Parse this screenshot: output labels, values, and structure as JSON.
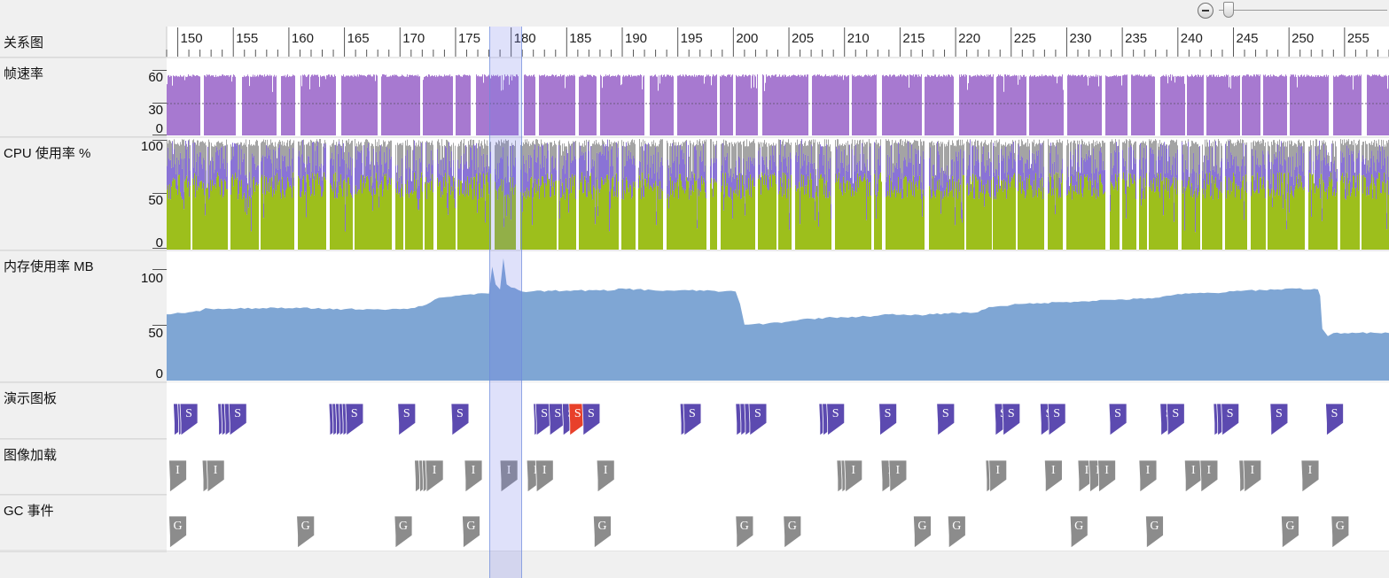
{
  "zoom": {
    "zoom_out_icon": "zoom-out-circle-icon",
    "slider_level": 0.05
  },
  "ruler": {
    "start": 149,
    "end": 259,
    "labels": [
      "150",
      "155",
      "160",
      "165",
      "170",
      "175",
      "180",
      "185",
      "190",
      "195",
      "200",
      "205",
      "210",
      "215",
      "220",
      "225",
      "230",
      "235",
      "240",
      "245",
      "250",
      "255"
    ]
  },
  "selection": {
    "start": 178,
    "end": 181
  },
  "lanes": {
    "timeline": {
      "label": "关系图"
    },
    "framerate": {
      "label": "帧速率",
      "ticks": [
        "60",
        "30",
        "0"
      ],
      "color": "#a779d0"
    },
    "cpu": {
      "label": "CPU 使用率 %",
      "ticks": [
        "100",
        "50",
        "0"
      ],
      "colors": {
        "green": "#9dbf1c",
        "purple": "#8a73d6",
        "gray": "#a4a4a4"
      }
    },
    "memory": {
      "label": "内存使用率 MB",
      "ticks": [
        "100",
        "50",
        "0"
      ],
      "color": "#7fa6d4"
    },
    "storyboard": {
      "label": "演示图板",
      "marker_letter": "S",
      "color": "#5c4ab0",
      "highlight_color": "#e8402a"
    },
    "image_load": {
      "label": "图像加载",
      "marker_letter": "I",
      "color": "#8c8c8c"
    },
    "gc": {
      "label": "GC 事件",
      "marker_letter": "G",
      "color": "#8c8c8c"
    }
  },
  "memory_series": {
    "x": [
      149,
      151,
      152,
      152.5,
      154,
      157,
      160,
      161,
      165,
      168,
      170,
      171,
      172,
      173.5,
      175,
      176,
      178,
      178.3,
      178.6,
      179,
      179.3,
      179.6,
      180,
      181,
      185,
      189,
      190,
      193,
      198,
      199,
      200.2,
      200.6,
      201,
      203,
      205,
      206,
      209,
      212,
      214,
      216,
      218,
      219,
      222,
      223,
      224,
      226,
      228,
      230,
      234,
      237,
      238,
      239,
      241,
      244,
      246,
      249,
      250,
      252.6,
      252.8,
      253,
      253.5,
      254,
      256,
      259
    ],
    "y": [
      64,
      66,
      67,
      70,
      69,
      70,
      70,
      70,
      69,
      69,
      69,
      70,
      72,
      80,
      82,
      83,
      84,
      110,
      93,
      88,
      118,
      93,
      90,
      86,
      87,
      87,
      89,
      87,
      87,
      86,
      86,
      74,
      54,
      55,
      57,
      59,
      61,
      62,
      64,
      63,
      64,
      65,
      66,
      71,
      72,
      74,
      75,
      76,
      78,
      79,
      80,
      82,
      84,
      85,
      87,
      88,
      89,
      88,
      82,
      50,
      43,
      46,
      46,
      46
    ]
  },
  "storyboard_events": [
    {
      "t": 149.6
    },
    {
      "t": 150.0
    },
    {
      "t": 150.2,
      "l": "S"
    },
    {
      "t": 153.6
    },
    {
      "t": 153.9
    },
    {
      "t": 154.2,
      "l": "S"
    },
    {
      "t": 154.6,
      "l": "S"
    },
    {
      "t": 163.6
    },
    {
      "t": 163.9
    },
    {
      "t": 164.2
    },
    {
      "t": 164.5
    },
    {
      "t": 164.8
    },
    {
      "t": 165.1,
      "l": "S"
    },
    {
      "t": 169.8,
      "l": "S"
    },
    {
      "t": 174.6,
      "l": "S"
    },
    {
      "t": 182.0
    },
    {
      "t": 182.2,
      "l": "S"
    },
    {
      "t": 183.4,
      "l": "S"
    },
    {
      "t": 184.6,
      "l": "S"
    },
    {
      "t": 185.2,
      "l": "S",
      "hl": true
    },
    {
      "t": 186.4,
      "l": "S"
    },
    {
      "t": 195.2
    },
    {
      "t": 195.5,
      "l": "S"
    },
    {
      "t": 200.2
    },
    {
      "t": 200.6,
      "l": "S"
    },
    {
      "t": 201.0
    },
    {
      "t": 201.4,
      "l": "S"
    },
    {
      "t": 207.7
    },
    {
      "t": 208.0,
      "l": "S"
    },
    {
      "t": 208.4,
      "l": "S"
    },
    {
      "t": 213.1,
      "l": "S"
    },
    {
      "t": 218.3,
      "l": "S"
    },
    {
      "t": 223.5,
      "l": "S"
    },
    {
      "t": 224.2,
      "l": "S"
    },
    {
      "t": 227.6,
      "l": "S"
    },
    {
      "t": 228.3,
      "l": "S"
    },
    {
      "t": 233.8,
      "l": "S"
    },
    {
      "t": 238.4,
      "l": "S"
    },
    {
      "t": 239.0,
      "l": "S"
    },
    {
      "t": 243.2
    },
    {
      "t": 243.5
    },
    {
      "t": 243.9,
      "l": "S"
    },
    {
      "t": 248.3,
      "l": "S"
    },
    {
      "t": 253.3,
      "l": "S"
    }
  ],
  "image_events": [
    {
      "t": 149.2,
      "l": "I"
    },
    {
      "t": 152.2
    },
    {
      "t": 152.6,
      "l": "I"
    },
    {
      "t": 171.3
    },
    {
      "t": 171.7
    },
    {
      "t": 172.0
    },
    {
      "t": 172.3,
      "l": "I"
    },
    {
      "t": 175.8,
      "l": "I"
    },
    {
      "t": 179.0,
      "l": "I"
    },
    {
      "t": 181.4,
      "l": "I"
    },
    {
      "t": 182.2,
      "l": "I"
    },
    {
      "t": 187.7,
      "l": "I"
    },
    {
      "t": 209.3
    },
    {
      "t": 209.7
    },
    {
      "t": 210.0,
      "l": "I"
    },
    {
      "t": 213.3,
      "l": "I"
    },
    {
      "t": 214.0,
      "l": "I"
    },
    {
      "t": 222.7
    },
    {
      "t": 223.0,
      "l": "I"
    },
    {
      "t": 228.0,
      "l": "I"
    },
    {
      "t": 231.0,
      "l": "I"
    },
    {
      "t": 232.0,
      "l": "I"
    },
    {
      "t": 232.8,
      "l": "I"
    },
    {
      "t": 236.5,
      "l": "I"
    },
    {
      "t": 240.6,
      "l": "I"
    },
    {
      "t": 242.0,
      "l": "I"
    },
    {
      "t": 245.5
    },
    {
      "t": 245.9,
      "l": "I"
    },
    {
      "t": 251.1,
      "l": "I"
    }
  ],
  "gc_events": [
    {
      "t": 149.2,
      "l": "G"
    },
    {
      "t": 160.7,
      "l": "G"
    },
    {
      "t": 169.5,
      "l": "G"
    },
    {
      "t": 175.6,
      "l": "G"
    },
    {
      "t": 187.4,
      "l": "G"
    },
    {
      "t": 200.2,
      "l": "G"
    },
    {
      "t": 204.5,
      "l": "G"
    },
    {
      "t": 216.2,
      "l": "G"
    },
    {
      "t": 219.3,
      "l": "G"
    },
    {
      "t": 230.3,
      "l": "G"
    },
    {
      "t": 237.1,
      "l": "G"
    },
    {
      "t": 249.3,
      "l": "G"
    },
    {
      "t": 253.8,
      "l": "G"
    }
  ]
}
